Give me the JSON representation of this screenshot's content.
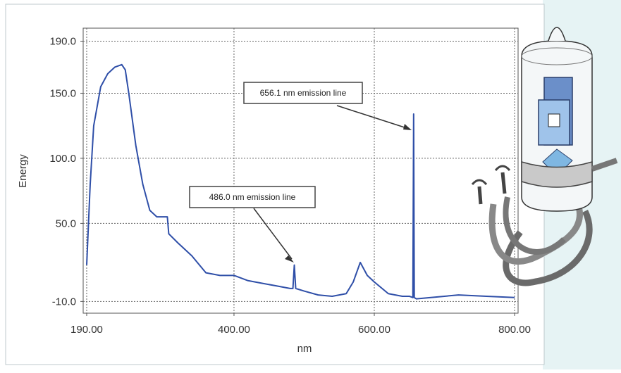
{
  "chart_data": {
    "type": "line",
    "x_label": "nm",
    "y_label": "Energy",
    "xlim": [
      185,
      805
    ],
    "ylim": [
      -19,
      200
    ],
    "xticks": [
      {
        "value": 190,
        "label": "190.00"
      },
      {
        "value": 400,
        "label": "400.00"
      },
      {
        "value": 600,
        "label": "600.00"
      },
      {
        "value": 800,
        "label": "800.00"
      }
    ],
    "yticks": [
      {
        "value": -10,
        "label": "-10.0"
      },
      {
        "value": 50,
        "label": "50.0"
      },
      {
        "value": 100,
        "label": "100.0"
      },
      {
        "value": 150,
        "label": "150.0"
      },
      {
        "value": 190,
        "label": "190.0"
      }
    ],
    "grid": true,
    "color": "#2f4fa8",
    "x": [
      190,
      195,
      200,
      210,
      220,
      230,
      240,
      245,
      250,
      260,
      270,
      280,
      290,
      300,
      305,
      307,
      320,
      340,
      360,
      380,
      400,
      420,
      440,
      460,
      480,
      484,
      486,
      488,
      500,
      520,
      540,
      560,
      570,
      580,
      585,
      590,
      600,
      620,
      640,
      650,
      655,
      656.1,
      657,
      660,
      700,
      720,
      760,
      800
    ],
    "values": [
      18,
      80,
      125,
      155,
      165,
      170,
      172,
      168,
      150,
      110,
      80,
      60,
      55,
      55,
      55,
      42,
      35,
      25,
      12,
      10,
      10,
      6,
      4,
      2,
      0,
      0,
      18,
      0,
      -2,
      -5,
      -6,
      -4,
      5,
      20,
      15,
      10,
      5,
      -4,
      -6,
      -6,
      -7,
      134,
      -7,
      -8,
      -6,
      -5,
      -6,
      -7
    ],
    "annotations": [
      "656.1 nm emission line",
      "486.0 nm emission line"
    ]
  }
}
